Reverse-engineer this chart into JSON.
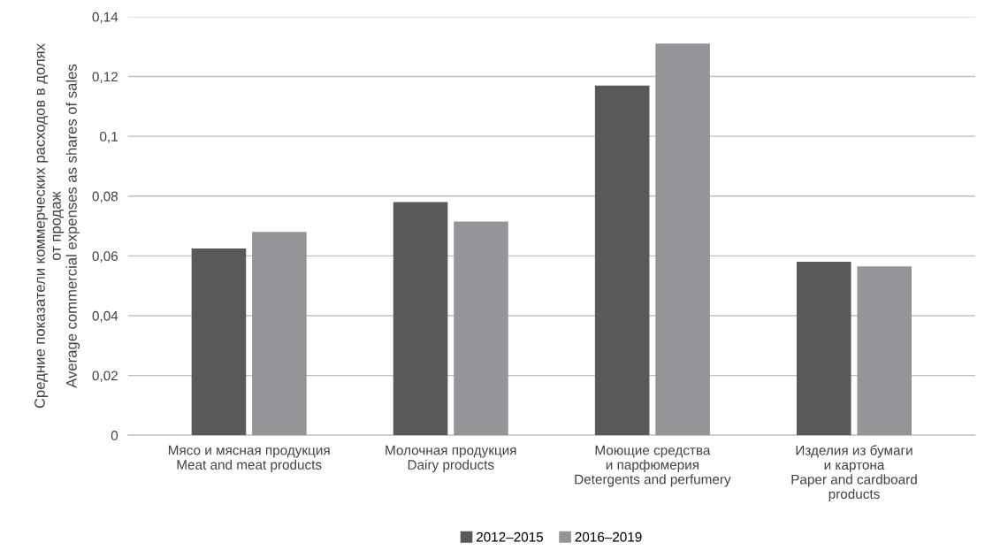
{
  "chart_data": {
    "type": "bar",
    "ylabel": "Средние показатели коммерческих расходов в долях\nот продаж\nAverage commercial expenses as shares of sales",
    "categories": [
      "Мясо и мясная продукция\nMeat and meat products",
      "Молочная продукция\nDairy products",
      "Моющие средства\nи парфюмерия\nDetergents and perfumery",
      "Изделия из бумаги\nи картона\nPaper and cardboard\nproducts"
    ],
    "series": [
      {
        "name": "2012–2015",
        "color": "#58595b",
        "values": [
          0.0625,
          0.078,
          0.117,
          0.058
        ]
      },
      {
        "name": "2016–2019",
        "color": "#939598",
        "values": [
          0.068,
          0.0715,
          0.131,
          0.0565
        ]
      }
    ],
    "ylim": [
      0,
      0.14
    ],
    "yticks": [
      {
        "value": 0,
        "label": "0"
      },
      {
        "value": 0.02,
        "label": "0,02"
      },
      {
        "value": 0.04,
        "label": "0,04"
      },
      {
        "value": 0.06,
        "label": "0,06"
      },
      {
        "value": 0.08,
        "label": "0,08"
      },
      {
        "value": 0.1,
        "label": "0,1"
      },
      {
        "value": 0.12,
        "label": "0,12"
      },
      {
        "value": 0.14,
        "label": "0,14"
      }
    ],
    "grid": "y",
    "legend": "bottom"
  }
}
